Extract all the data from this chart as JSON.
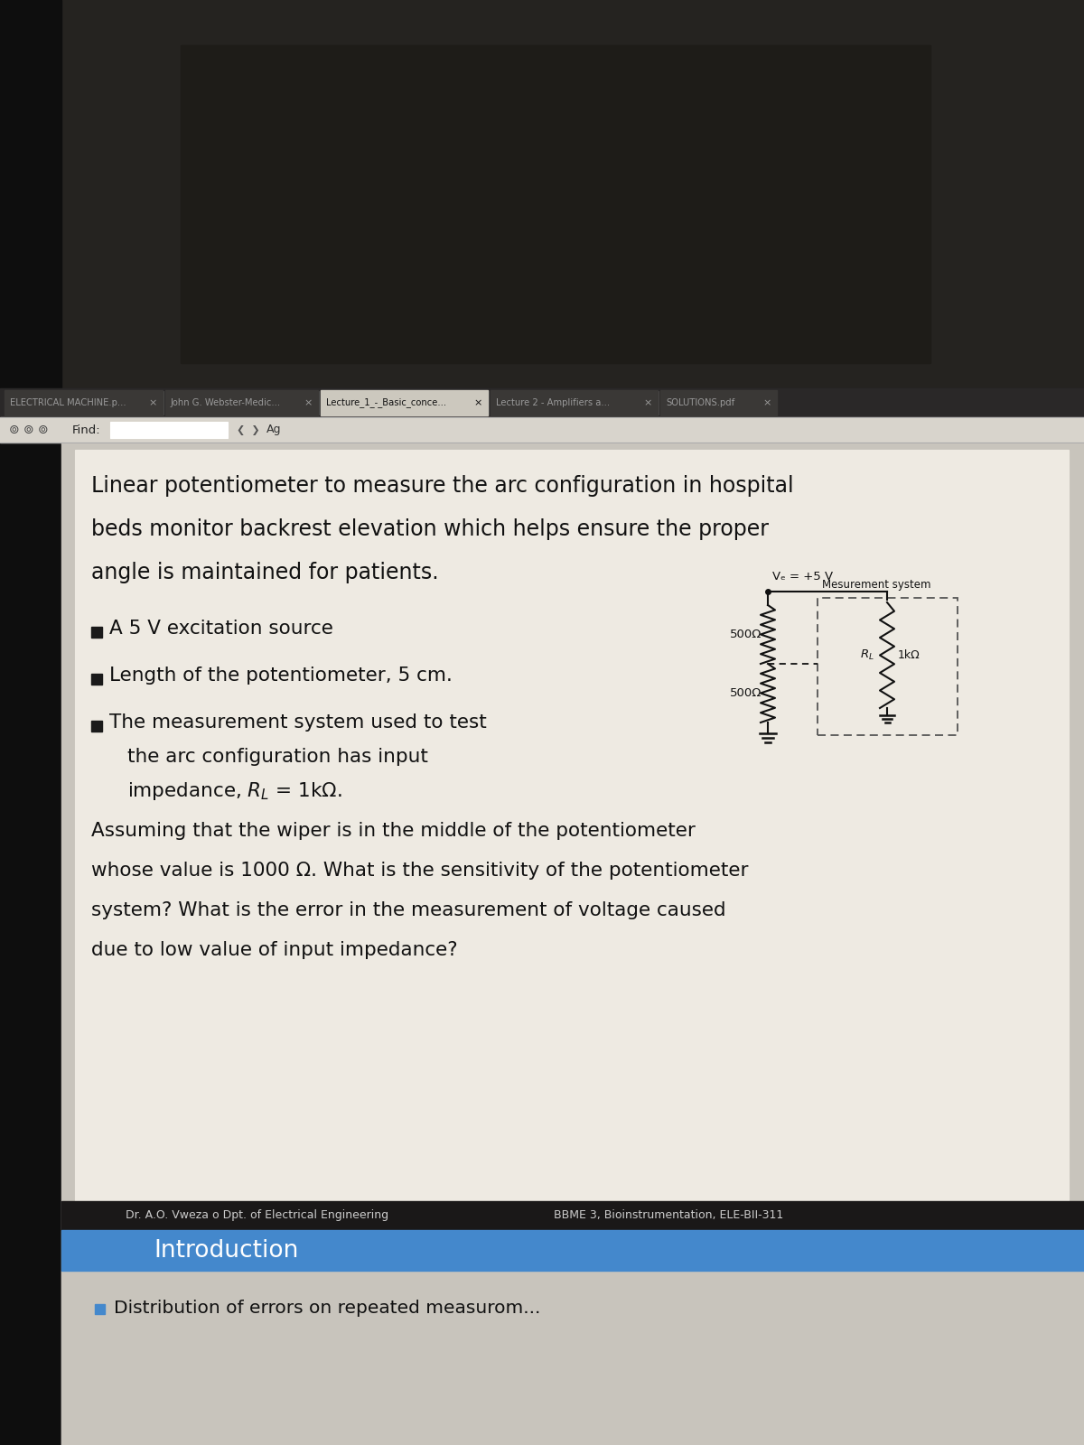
{
  "bg_top_color": "#1a1a1a",
  "dark_area_color": "#1e1c18",
  "left_panel_color": "#0d0d0d",
  "tab_bar_color": "#2a2828",
  "tab_active_color": "#ccc8be",
  "tab_inactive_color": "#3a3836",
  "tab_active_text": "#111111",
  "tab_inactive_text": "#999999",
  "toolbar_color": "#d8d4cc",
  "content_bg_color": "#c8c4bc",
  "slide_bg_color": "#eeeae2",
  "slide_border_color": "#aaaaaa",
  "footer_dark_color": "#1a1818",
  "footer_blue_color": "#4488cc",
  "next_content_color": "#c8c4bc",
  "tabs": [
    "ELECTRICAL MACHINE.p...",
    "John G. Webster-Medic...",
    "Lecture_1_-_Basic_conce...",
    "Lecture 2 - Amplifiers a...",
    "SOLUTIONS.pdf"
  ],
  "tab_widths": [
    178,
    172,
    188,
    188,
    132
  ],
  "active_tab_idx": 2,
  "toolbar_find": "Find:",
  "toolbar_ag": "Ag",
  "title_line1": "Linear potentiometer to measure the arc configuration in hospital",
  "title_line2": "beds monitor backrest elevation which helps ensure the proper",
  "title_line3": "angle is maintained for patients.",
  "bullet1": "A 5 V excitation source",
  "bullet2": "Length of the potentiometer, 5 cm.",
  "bullet3a": "The measurement system used to test",
  "bullet3b": "the arc configuration has input",
  "bullet3c": "impedance, Rₗ = 1kΩ.",
  "main_line1": "Assuming that the wiper is in the middle of the potentiometer",
  "main_line2": "whose value is 1000 Ω. What is the sensitivity of the potentiometer",
  "main_line3": "system? What is the error in the measurement of voltage caused",
  "main_line4": "due to low value of input impedance?",
  "circ_vs": "Vₑ = +5 V",
  "circ_r1": "500Ω",
  "circ_r2": "500Ω",
  "circ_rl_label": "Rₗ",
  "circ_rl_val": "1kΩ",
  "circ_box_label": "Mesurement system",
  "footer_left": "Dr. A.O. Vweza o Dpt. of Electrical Engineering",
  "footer_right": "BBME 3, Bioinstrumentation, ELE-BII-311",
  "intro_title": "Introduction",
  "next_bullet": "■  Distribution of errors on repeated measurom"
}
